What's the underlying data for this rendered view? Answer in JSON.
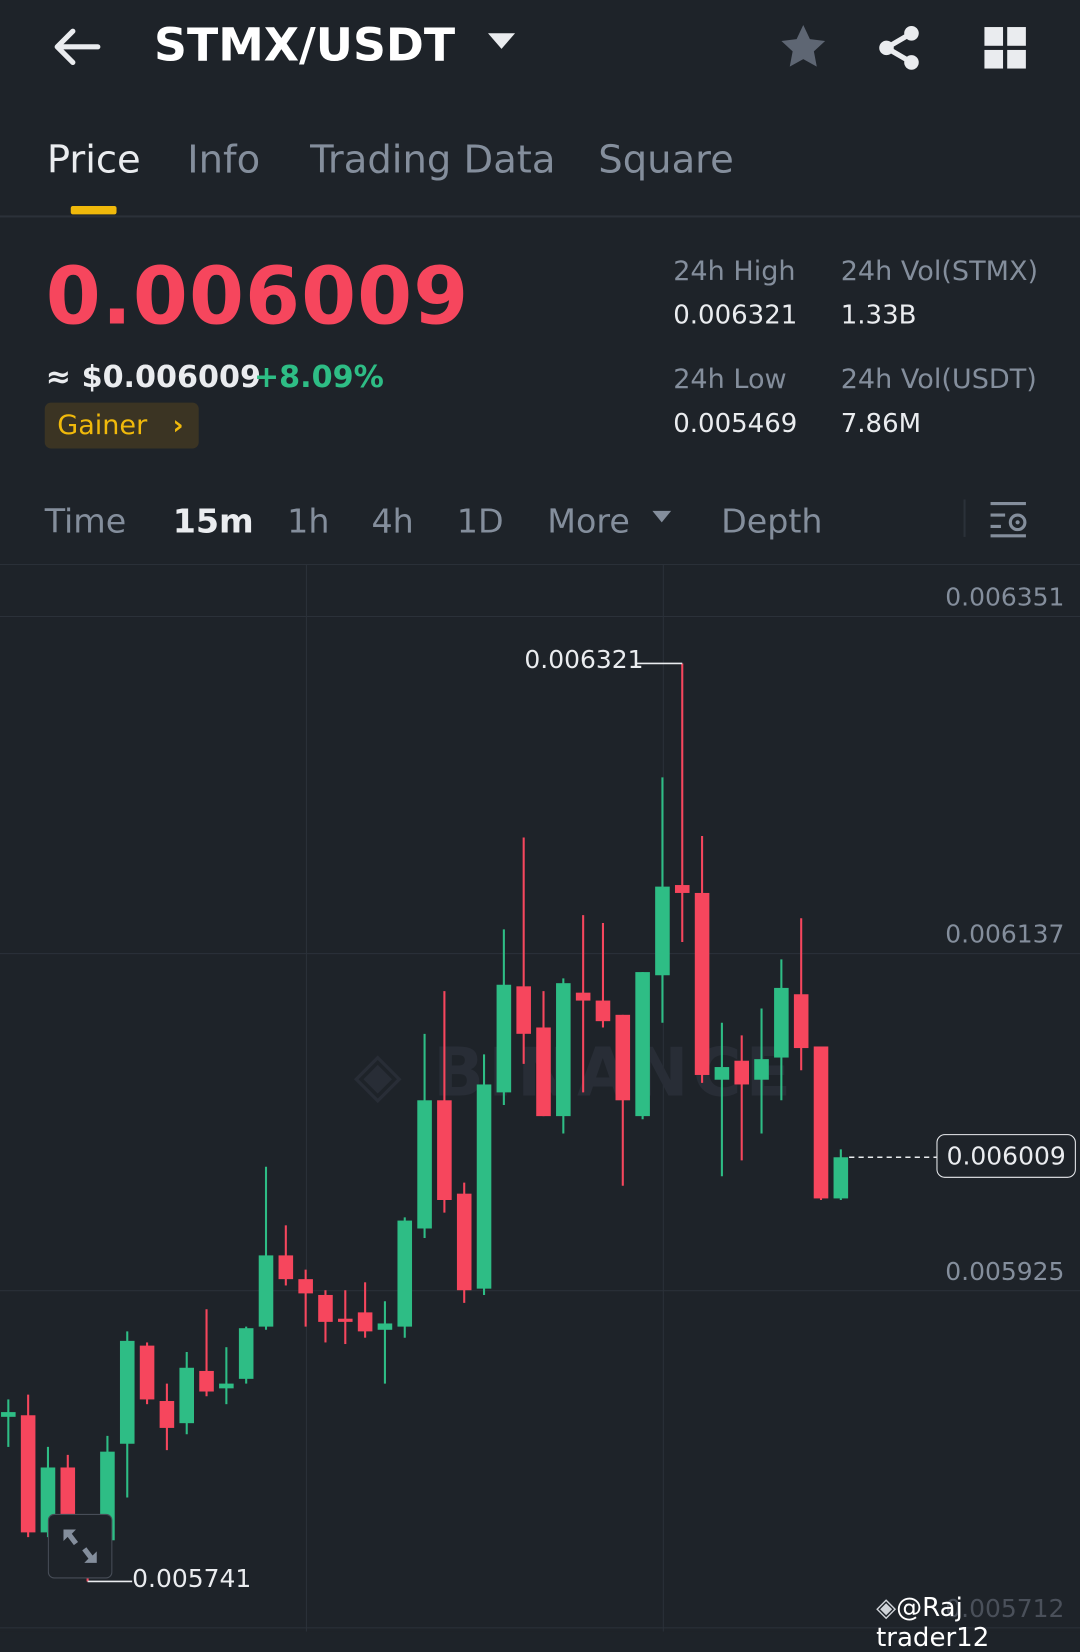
{
  "header": {
    "pair": "STMX/USDT"
  },
  "tabs": [
    {
      "label": "Price",
      "active": true
    },
    {
      "label": "Info"
    },
    {
      "label": "Trading Data"
    },
    {
      "label": "Square"
    }
  ],
  "ticker": {
    "last_price": "0.006009",
    "fiat_price": "≈ $0.006009",
    "change": "+8.09%",
    "badge": "Gainer",
    "stats": [
      {
        "label": "24h High",
        "value": "0.006321"
      },
      {
        "label": "24h Vol(STMX)",
        "value": "1.33B"
      },
      {
        "label": "24h Low",
        "value": "0.005469"
      },
      {
        "label": "24h Vol(USDT)",
        "value": "7.86M"
      }
    ]
  },
  "intervals": [
    {
      "label": "Time"
    },
    {
      "label": "15m",
      "active": true
    },
    {
      "label": "1h"
    },
    {
      "label": "4h"
    },
    {
      "label": "1D"
    },
    {
      "label": "More"
    },
    {
      "label": "Depth"
    }
  ],
  "colors": {
    "up": "#2ebd85",
    "down": "#f6465d",
    "accent": "#f0b90b",
    "background": "#1e2329"
  },
  "chart_data": {
    "type": "candlestick",
    "interval": "15m",
    "y_ticks": [
      "0.006351",
      "0.006137",
      "0.005925",
      "0.005712"
    ],
    "ylim": [
      0.005712,
      0.006425
    ],
    "high_marker": "0.006321",
    "low_marker": "0.005741",
    "current_price": "0.006009",
    "watermark": "BINANCE",
    "candles": [
      [
        0.005845,
        0.005856,
        0.005826,
        0.005848
      ],
      [
        0.005846,
        0.005859,
        0.005769,
        0.005772
      ],
      [
        0.005772,
        0.005826,
        0.005769,
        0.005813
      ],
      [
        0.005813,
        0.005821,
        0.005767,
        0.005774
      ],
      [
        0.005774,
        0.005779,
        0.005741,
        0.005762
      ],
      [
        0.005767,
        0.005833,
        0.005761,
        0.005823
      ],
      [
        0.005828,
        0.005899,
        0.005794,
        0.005893
      ],
      [
        0.00589,
        0.005892,
        0.005853,
        0.005856
      ],
      [
        0.005855,
        0.005866,
        0.005824,
        0.005838
      ],
      [
        0.005841,
        0.005886,
        0.005834,
        0.005876
      ],
      [
        0.005874,
        0.005913,
        0.005858,
        0.005861
      ],
      [
        0.005863,
        0.005889,
        0.005853,
        0.005866
      ],
      [
        0.005869,
        0.005902,
        0.005866,
        0.005901
      ],
      [
        0.005902,
        0.006003,
        0.0059,
        0.005947
      ],
      [
        0.005947,
        0.005966,
        0.005928,
        0.005932
      ],
      [
        0.005932,
        0.005938,
        0.005902,
        0.005923
      ],
      [
        0.005922,
        0.005925,
        0.005892,
        0.005905
      ],
      [
        0.005907,
        0.005925,
        0.005891,
        0.005905
      ],
      [
        0.005911,
        0.00593,
        0.005895,
        0.005899
      ],
      [
        0.0059,
        0.005918,
        0.005866,
        0.005904
      ],
      [
        0.005902,
        0.005971,
        0.005895,
        0.005969
      ],
      [
        0.005964,
        0.006087,
        0.005958,
        0.006045
      ],
      [
        0.006045,
        0.006114,
        0.005974,
        0.005982
      ],
      [
        0.005986,
        0.005993,
        0.005917,
        0.005925
      ],
      [
        0.005926,
        0.006074,
        0.005922,
        0.006055
      ],
      [
        0.00605,
        0.006153,
        0.006042,
        0.006118
      ],
      [
        0.006117,
        0.006211,
        0.006068,
        0.006087
      ],
      [
        0.006091,
        0.006114,
        0.006035,
        0.006035
      ],
      [
        0.006035,
        0.006122,
        0.006024,
        0.006119
      ],
      [
        0.006113,
        0.006162,
        0.00605,
        0.006108
      ],
      [
        0.006108,
        0.006157,
        0.006091,
        0.006095
      ],
      [
        0.006099,
        0.006099,
        0.005991,
        0.006045
      ],
      [
        0.006035,
        0.006126,
        0.006033,
        0.006126
      ],
      [
        0.006124,
        0.006249,
        0.006094,
        0.00618
      ],
      [
        0.006181,
        0.006321,
        0.006145,
        0.006176
      ],
      [
        0.006176,
        0.006212,
        0.006056,
        0.006061
      ],
      [
        0.006058,
        0.006094,
        0.005997,
        0.006066
      ],
      [
        0.00607,
        0.006086,
        0.006007,
        0.006055
      ],
      [
        0.006058,
        0.006103,
        0.006024,
        0.006071
      ],
      [
        0.006072,
        0.006134,
        0.006045,
        0.006116
      ],
      [
        0.006112,
        0.00616,
        0.006064,
        0.006078
      ],
      [
        0.006079,
        0.006079,
        0.005982,
        0.005983
      ],
      [
        0.005983,
        0.006014,
        0.005982,
        0.006009
      ]
    ],
    "candle_format": [
      "open",
      "high",
      "low",
      "close"
    ]
  },
  "watermark_user": "@Raj trader12"
}
